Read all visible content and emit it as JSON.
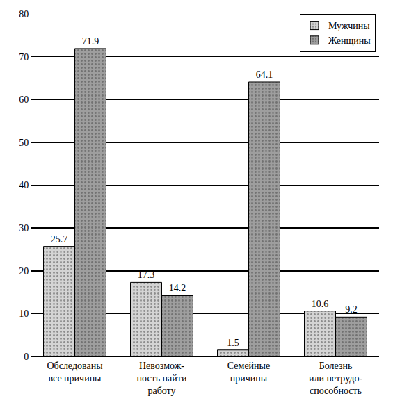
{
  "chart_data": {
    "type": "bar",
    "categories": [
      "Обследованы\nвсе причины",
      "Невозмож-\nность найти\nработу",
      "Семейные\nпричины",
      "Болезнь\nили нетрудо-\nспособность"
    ],
    "series": [
      {
        "name": "Мужчины",
        "color": "#d4d4d4",
        "values": [
          25.7,
          17.3,
          1.5,
          10.6
        ]
      },
      {
        "name": "Женщины",
        "color": "#9e9e9e",
        "values": [
          71.9,
          14.2,
          64.1,
          9.2
        ]
      }
    ],
    "ylim": [
      0,
      80
    ],
    "yticks": [
      0,
      10,
      20,
      30,
      40,
      50,
      60,
      70,
      80
    ],
    "grid": true,
    "legend": "top right",
    "data_labels": true
  }
}
